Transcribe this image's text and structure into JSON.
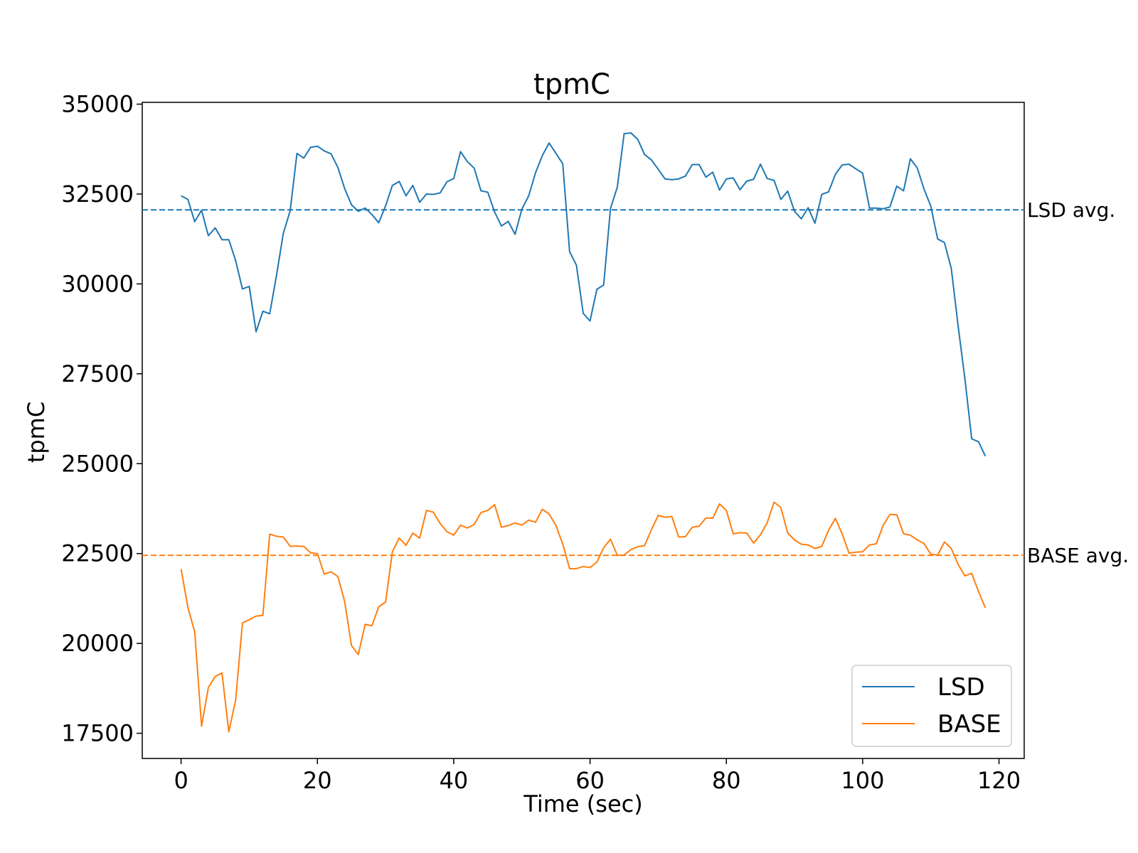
{
  "chart_data": {
    "type": "line",
    "title": "tpmC",
    "xlabel": "Time (sec)",
    "ylabel": "tpmC",
    "xlim": [
      -5.7,
      123.7
    ],
    "ylim": [
      16800,
      35050
    ],
    "xticks": [
      0,
      20,
      40,
      60,
      80,
      100,
      120
    ],
    "yticks": [
      17500,
      20000,
      22500,
      25000,
      27500,
      30000,
      32500,
      35000
    ],
    "grid": false,
    "legend_position": "lower-right",
    "series": [
      {
        "name": "LSD",
        "color": "#1f77b4",
        "x": [
          0,
          1,
          2,
          3,
          4,
          5,
          6,
          7,
          8,
          9,
          10,
          11,
          12,
          13,
          14,
          15,
          16,
          17,
          18,
          19,
          20,
          21,
          22,
          23,
          24,
          25,
          26,
          27,
          28,
          29,
          30,
          31,
          32,
          33,
          34,
          35,
          36,
          37,
          38,
          39,
          40,
          41,
          42,
          43,
          44,
          45,
          46,
          47,
          48,
          49,
          50,
          51,
          52,
          53,
          54,
          55,
          56,
          57,
          58,
          59,
          60,
          61,
          62,
          63,
          64,
          65,
          66,
          67,
          68,
          69,
          70,
          71,
          72,
          73,
          74,
          75,
          76,
          77,
          78,
          79,
          80,
          81,
          82,
          83,
          84,
          85,
          86,
          87,
          88,
          89,
          90,
          91,
          92,
          93,
          94,
          95,
          96,
          97,
          98,
          99,
          100,
          101,
          102,
          103,
          104,
          105,
          106,
          107,
          108,
          109,
          110,
          111,
          112,
          113,
          114,
          115,
          116,
          117,
          118
        ],
        "values": [
          32450,
          32350,
          31730,
          32050,
          31340,
          31560,
          31230,
          31230,
          30650,
          29860,
          29930,
          28670,
          29240,
          29170,
          30240,
          31410,
          32030,
          33630,
          33500,
          33800,
          33830,
          33700,
          33620,
          33240,
          32650,
          32200,
          32020,
          32110,
          31930,
          31700,
          32170,
          32740,
          32850,
          32450,
          32740,
          32270,
          32500,
          32490,
          32530,
          32840,
          32930,
          33680,
          33400,
          33220,
          32590,
          32550,
          32000,
          31610,
          31740,
          31380,
          32080,
          32450,
          33090,
          33570,
          33920,
          33630,
          33340,
          30900,
          30520,
          29180,
          28970,
          29850,
          29970,
          32100,
          32690,
          34180,
          34200,
          34020,
          33600,
          33450,
          33190,
          32920,
          32900,
          32920,
          33000,
          33320,
          33320,
          32970,
          33110,
          32610,
          32920,
          32950,
          32620,
          32860,
          32910,
          33330,
          32930,
          32880,
          32350,
          32580,
          32020,
          31810,
          32120,
          31690,
          32490,
          32560,
          33050,
          33310,
          33330,
          33200,
          33080,
          32110,
          32110,
          32090,
          32140,
          32720,
          32590,
          33480,
          33230,
          32640,
          32160,
          31250,
          31150,
          30430,
          28840,
          27360,
          25690,
          25610,
          25210
        ]
      },
      {
        "name": "BASE",
        "color": "#ff7f0e",
        "x": [
          0,
          1,
          2,
          3,
          4,
          5,
          6,
          7,
          8,
          9,
          10,
          11,
          12,
          13,
          14,
          15,
          16,
          17,
          18,
          19,
          20,
          21,
          22,
          23,
          24,
          25,
          26,
          27,
          28,
          29,
          30,
          31,
          32,
          33,
          34,
          35,
          36,
          37,
          38,
          39,
          40,
          41,
          42,
          43,
          44,
          45,
          46,
          47,
          48,
          49,
          50,
          51,
          52,
          53,
          54,
          55,
          56,
          57,
          58,
          59,
          60,
          61,
          62,
          63,
          64,
          65,
          66,
          67,
          68,
          69,
          70,
          71,
          72,
          73,
          74,
          75,
          76,
          77,
          78,
          79,
          80,
          81,
          82,
          83,
          84,
          85,
          86,
          87,
          88,
          89,
          90,
          91,
          92,
          93,
          94,
          95,
          96,
          97,
          98,
          99,
          100,
          101,
          102,
          103,
          104,
          105,
          106,
          107,
          108,
          109,
          110,
          111,
          112,
          113,
          114,
          115,
          116,
          117,
          118
        ],
        "values": [
          22070,
          21000,
          20320,
          17700,
          18770,
          19080,
          19180,
          17540,
          18420,
          20570,
          20660,
          20760,
          20780,
          23040,
          22980,
          22960,
          22700,
          22710,
          22700,
          22520,
          22500,
          21930,
          21990,
          21860,
          21160,
          19940,
          19690,
          20530,
          20490,
          21020,
          21150,
          22550,
          22930,
          22730,
          23070,
          22930,
          23700,
          23650,
          23340,
          23110,
          23010,
          23290,
          23210,
          23310,
          23640,
          23700,
          23860,
          23230,
          23280,
          23350,
          23290,
          23430,
          23370,
          23730,
          23600,
          23280,
          22760,
          22080,
          22080,
          22140,
          22110,
          22260,
          22660,
          22900,
          22450,
          22460,
          22610,
          22690,
          22720,
          23160,
          23560,
          23510,
          23530,
          22960,
          22970,
          23230,
          23260,
          23490,
          23480,
          23880,
          23700,
          23050,
          23080,
          23070,
          22790,
          23020,
          23360,
          23930,
          23780,
          23070,
          22880,
          22760,
          22740,
          22640,
          22700,
          23150,
          23480,
          23040,
          22510,
          22540,
          22550,
          22740,
          22770,
          23280,
          23590,
          23580,
          23050,
          23010,
          22880,
          22780,
          22480,
          22460,
          22820,
          22640,
          22200,
          21880,
          21950,
          21440,
          20990
        ]
      }
    ],
    "reference_lines": [
      {
        "label": "LSD avg.",
        "value": 32060,
        "color": "#1f77b4",
        "style": "dashed"
      },
      {
        "label": "BASE avg.",
        "value": 22450,
        "color": "#ff7f0e",
        "style": "dashed"
      }
    ]
  }
}
